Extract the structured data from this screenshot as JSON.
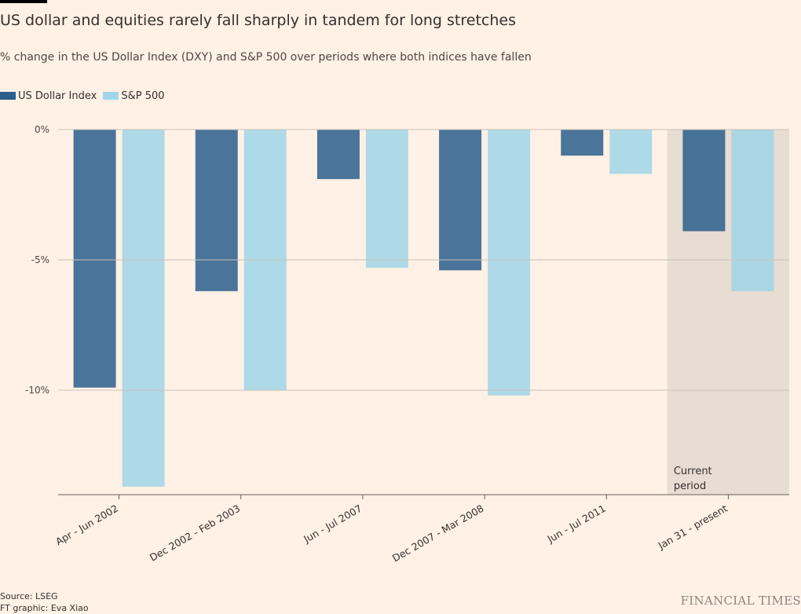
{
  "title": "US dollar and equities rarely fall sharply in tandem for long stretches",
  "subtitle": "% change in the US Dollar Index (DXY) and S&P 500 over periods where both indices have fallen",
  "legend": [
    {
      "name": "US Dollar Index",
      "color": "#2a5e8c"
    },
    {
      "name": "S&P 500",
      "color": "#a0d5e8"
    }
  ],
  "annotation": {
    "line1": "Current",
    "line2": "period"
  },
  "source": "Source: LSEG",
  "credit": "FT graphic: Eva Xiao",
  "brand": "FINANCIAL TIMES",
  "colors": {
    "background": "#fff1e5",
    "highlight": "#e8ddd2",
    "gridline": "#c9c1b9",
    "axis": "#66605c"
  },
  "chart_data": {
    "type": "bar",
    "categories": [
      "Apr - Jun 2002",
      "Dec 2002 - Feb 2003",
      "Jun - Jul 2007",
      "Dec 2007 - Mar 2008",
      "Jun - Jul 2011",
      "Jan 31 - present"
    ],
    "series": [
      {
        "name": "US Dollar Index",
        "color": "#2a5e8c",
        "values": [
          -9.9,
          -6.2,
          -1.9,
          -5.4,
          -1.0,
          -3.9
        ]
      },
      {
        "name": "S&P 500",
        "color": "#a0d5e8",
        "values": [
          -13.7,
          -10.0,
          -5.3,
          -10.2,
          -1.7,
          -6.2
        ]
      }
    ],
    "yticks": [
      0,
      -5,
      -10
    ],
    "ytick_labels": [
      "0%",
      "-5%",
      "-10%"
    ],
    "ylim": [
      -14,
      0
    ],
    "highlight_category": "Jan 31 - present",
    "grid": true,
    "legend_position": "top-left"
  }
}
